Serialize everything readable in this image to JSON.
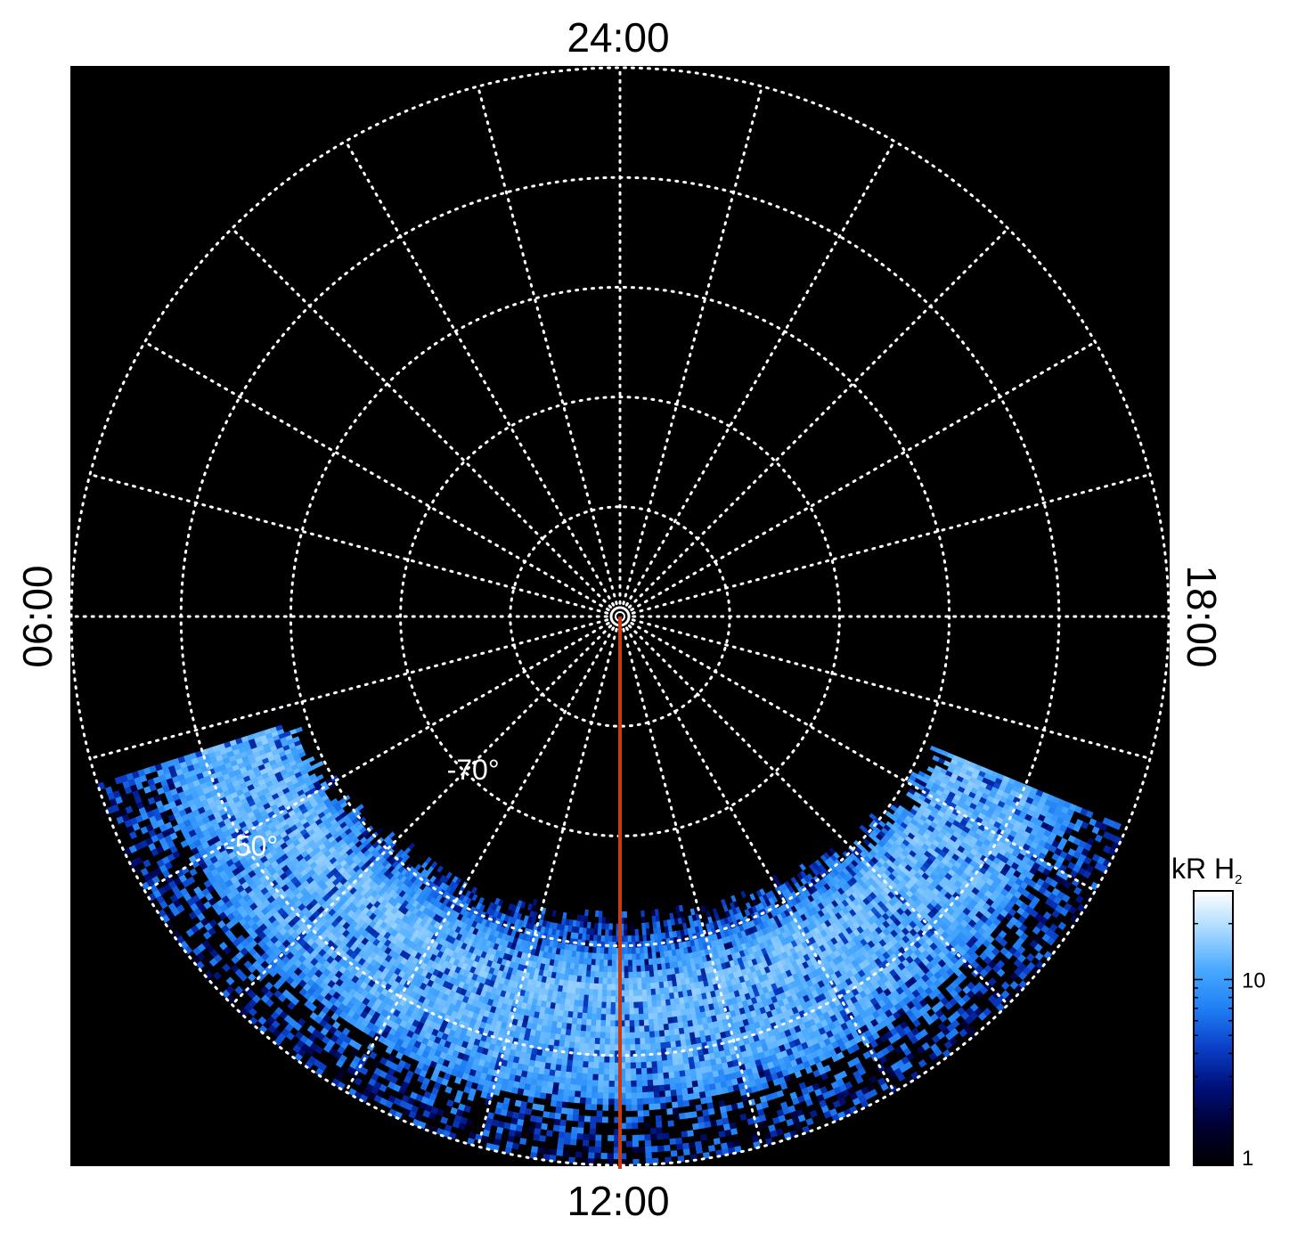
{
  "chart_data": {
    "type": "heatmap",
    "projection": "polar",
    "title": "",
    "local_time_labels": {
      "top": "24:00",
      "bottom": "12:00",
      "left": "06:00",
      "right": "18:00"
    },
    "latitude_circles": [
      -90,
      -80,
      -70,
      -60,
      -50,
      -40
    ],
    "latitude_labels": [
      {
        "text": "-70°",
        "latitude": -70,
        "local_time_hours": 14.8
      },
      {
        "text": "-50°",
        "latitude": -50,
        "local_time_hours": 15.8
      }
    ],
    "meridian_step_hours": 1,
    "colorbar": {
      "label_main": "kR H",
      "label_sub": "2",
      "scale": "log",
      "range": [
        1,
        30
      ],
      "ticks": [
        {
          "value": 1,
          "label": "1"
        },
        {
          "value": 10,
          "label": "10"
        }
      ],
      "colors": [
        "#000000",
        "#000033",
        "#00107a",
        "#0a3fc8",
        "#1f7ff5",
        "#49a9ff",
        "#a8d9ff",
        "#ffffff"
      ]
    },
    "emission_coverage": {
      "latitude_range": [
        -65,
        -40
      ],
      "local_time_range_hours": [
        7.5,
        16.8
      ],
      "peak_intensity_kR": 25
    },
    "reference_line": {
      "local_time_hours": 12,
      "latitude_range": [
        -90,
        -40
      ],
      "color": "#c83a12"
    },
    "background_color": "#000000",
    "grid_color": "#ffffff"
  }
}
